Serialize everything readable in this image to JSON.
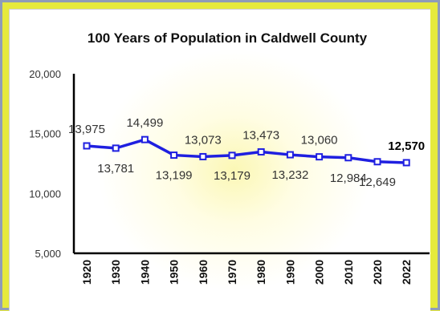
{
  "chart_data": {
    "type": "line",
    "title": "100 Years of Population in Caldwell County",
    "xlabel": "",
    "ylabel": "",
    "ylim": [
      5000,
      20000
    ],
    "yticks": [
      "20,000",
      "15,000",
      "10,000",
      "5,000"
    ],
    "ytick_values": [
      20000,
      15000,
      10000,
      5000
    ],
    "categories": [
      "1920",
      "1930",
      "1940",
      "1950",
      "1960",
      "1970",
      "1980",
      "1990",
      "2000",
      "2010",
      "2020",
      "2022"
    ],
    "values": [
      13975,
      13781,
      14499,
      13199,
      13073,
      13179,
      13473,
      13232,
      13060,
      12984,
      12649,
      12570
    ],
    "labels": [
      "13,975",
      "13,781",
      "14,499",
      "13,199",
      "13,073",
      "13,179",
      "13,473",
      "13,232",
      "13,060",
      "12,984",
      "12,649",
      "12,570"
    ],
    "label_positions": [
      "above",
      "below",
      "above",
      "below",
      "above",
      "below",
      "above",
      "below",
      "above",
      "below",
      "below",
      "above"
    ],
    "bold_labels": [
      false,
      false,
      false,
      false,
      false,
      false,
      false,
      false,
      false,
      false,
      false,
      true
    ],
    "grid": false,
    "legend": "none",
    "line_color": "#1f1fe0",
    "background_color": "#e6ea3c"
  }
}
